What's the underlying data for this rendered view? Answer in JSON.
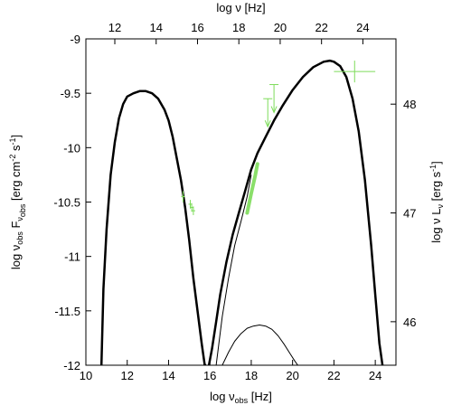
{
  "chart_data": {
    "type": "line",
    "xlabel_bottom": {
      "prefix": "log ν",
      "sub": "obs",
      "suffix": " [Hz]"
    },
    "xlabel_top": "log ν [Hz]",
    "ylabel_left": {
      "p1": "log ν",
      "s1": "obs",
      "p2": " F",
      "s2": "ν",
      "s3": "obs",
      "p3": " [erg cm",
      "e1": "-2",
      "p4": " s",
      "e2": "-1",
      "p5": "]"
    },
    "ylabel_right": {
      "p1": "log ν L",
      "s1": "ν",
      "p2": " [erg s",
      "e1": "-1",
      "p3": "]"
    },
    "xlim_bottom": [
      10,
      25
    ],
    "xlim_top": [
      10.6,
      25.6
    ],
    "ylim_left": [
      -12,
      -9
    ],
    "ylim_right": [
      45.6,
      48.6
    ],
    "xticks_bottom": [
      "10",
      "12",
      "14",
      "16",
      "18",
      "20",
      "22",
      "24"
    ],
    "xticks_bottom_values": [
      10,
      12,
      14,
      16,
      18,
      20,
      22,
      24
    ],
    "xticks_top": [
      "12",
      "14",
      "16",
      "18",
      "20",
      "22",
      "24"
    ],
    "xticks_top_values": [
      12,
      14,
      16,
      18,
      20,
      22,
      24
    ],
    "yticks_left": [
      "-9",
      "-9.5",
      "-10",
      "-10.5",
      "-11",
      "-11.5",
      "-12"
    ],
    "yticks_left_values": [
      -9,
      -9.5,
      -10,
      -10.5,
      -11,
      -11.5,
      -12
    ],
    "yticks_right": [
      "48",
      "47",
      "46"
    ],
    "yticks_right_values": [
      48,
      47,
      46
    ],
    "grid": false,
    "series": [
      {
        "style": "thick",
        "color": "#000000",
        "x": [
          10.75,
          10.85,
          11.0,
          11.2,
          11.4,
          11.6,
          11.8,
          12.0,
          12.3,
          12.6,
          12.9,
          13.2,
          13.5,
          13.8,
          14.0,
          14.2,
          14.4,
          14.6,
          14.8,
          15.0,
          15.2,
          15.4,
          15.6,
          15.75,
          15.82
        ],
        "y": [
          -12.0,
          -11.3,
          -10.75,
          -10.25,
          -9.95,
          -9.73,
          -9.6,
          -9.53,
          -9.5,
          -9.48,
          -9.48,
          -9.5,
          -9.55,
          -9.65,
          -9.75,
          -9.9,
          -10.1,
          -10.3,
          -10.55,
          -10.85,
          -11.2,
          -11.5,
          -11.8,
          -12.0,
          -12.0
        ]
      },
      {
        "style": "thick",
        "color": "#000000",
        "x": [
          15.95,
          16.1,
          16.3,
          16.5,
          16.8,
          17.1,
          17.4,
          17.7,
          18.0,
          18.3,
          18.7,
          19.1,
          19.5,
          20.0,
          20.5,
          21.0,
          21.5,
          21.8,
          22.0,
          22.3,
          22.6,
          22.9,
          23.2,
          23.5,
          23.8,
          24.0,
          24.2,
          24.35
        ],
        "y": [
          -12.0,
          -11.85,
          -11.6,
          -11.35,
          -11.05,
          -10.8,
          -10.6,
          -10.4,
          -10.2,
          -10.05,
          -9.9,
          -9.75,
          -9.62,
          -9.47,
          -9.35,
          -9.26,
          -9.21,
          -9.2,
          -9.21,
          -9.25,
          -9.35,
          -9.55,
          -9.85,
          -10.3,
          -10.9,
          -11.35,
          -11.8,
          -12.0
        ]
      },
      {
        "style": "thin",
        "color": "#000000",
        "x": [
          16.3,
          16.6,
          16.9,
          17.2,
          17.5,
          17.8,
          18.0
        ],
        "y": [
          -12.0,
          -11.55,
          -11.2,
          -10.9,
          -10.68,
          -10.45,
          -10.25
        ]
      },
      {
        "style": "thin",
        "color": "#000000",
        "x": [
          16.6,
          16.9,
          17.2,
          17.5,
          17.8,
          18.1,
          18.4,
          18.7,
          19.0,
          19.3,
          19.6,
          19.9,
          20.1,
          20.25
        ],
        "y": [
          -12.0,
          -11.88,
          -11.78,
          -11.71,
          -11.66,
          -11.64,
          -11.63,
          -11.64,
          -11.67,
          -11.73,
          -11.81,
          -11.9,
          -11.96,
          -12.0
        ]
      }
    ],
    "data_points": {
      "color": "#7ddc5a",
      "points": [
        {
          "x": 14.7,
          "y": -10.45,
          "yerr": 0.05
        },
        {
          "x": 15.05,
          "y": -10.52,
          "yerr": 0.04
        },
        {
          "x": 15.12,
          "y": -10.55,
          "yerr": 0.04
        },
        {
          "x": 15.2,
          "y": -10.58,
          "yerr": 0.04
        },
        {
          "x": 23.0,
          "y": -9.3,
          "xerr": 1.0,
          "yerr": 0.1
        }
      ],
      "upper_limits": [
        {
          "x": 18.8,
          "y": -9.55
        },
        {
          "x": 19.1,
          "y": -9.42
        }
      ],
      "band": [
        [
          17.8,
          -10.6
        ],
        [
          18.0,
          -10.42
        ],
        [
          18.2,
          -10.25
        ],
        [
          18.3,
          -10.15
        ]
      ]
    }
  }
}
